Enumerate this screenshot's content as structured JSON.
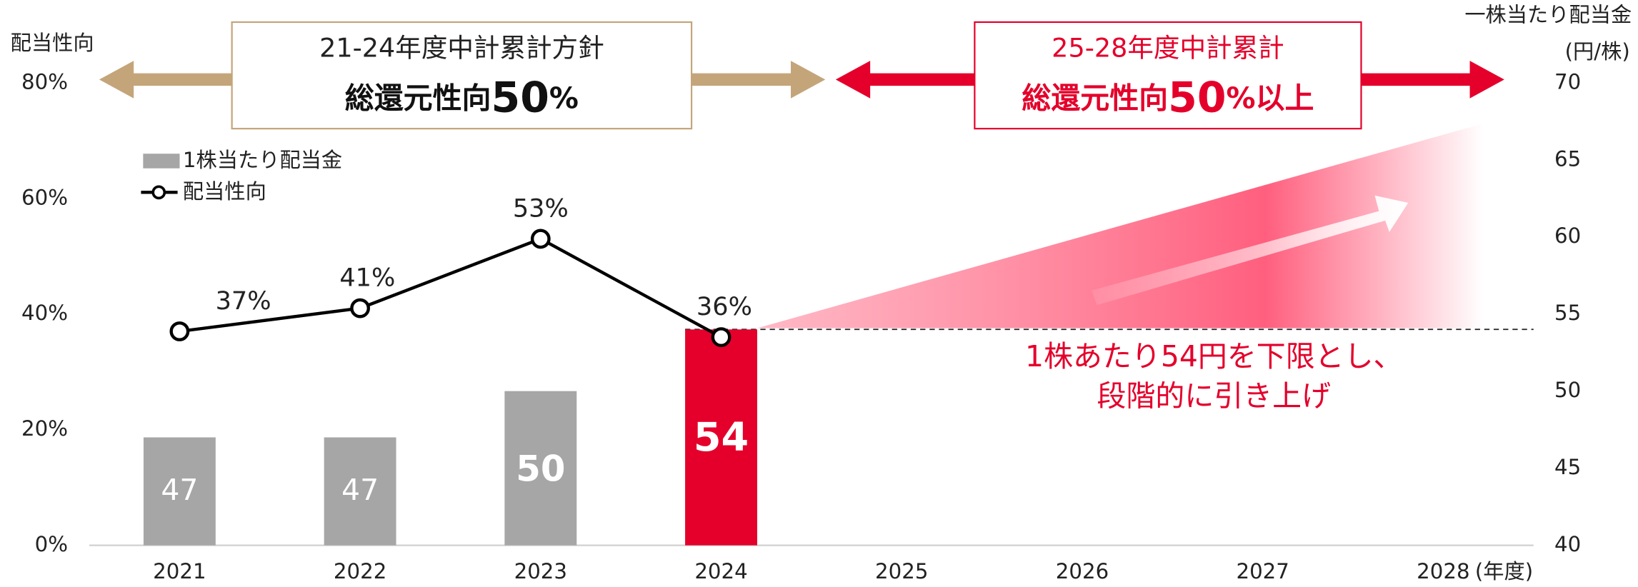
{
  "chart_data": {
    "type": "bar",
    "categories": [
      "2021",
      "2022",
      "2023",
      "2024",
      "2025",
      "2026",
      "2027",
      "2028"
    ],
    "x_label": "(年度)",
    "ylabel": "配当性向",
    "y2label": "一株当たり配当金",
    "y2unit": "(円/株)",
    "ylim": [
      0,
      80
    ],
    "yticks": [
      {
        "value": 0,
        "label": "0%"
      },
      {
        "value": 20,
        "label": "20%"
      },
      {
        "value": 40,
        "label": "40%"
      },
      {
        "value": 60,
        "label": "60%"
      },
      {
        "value": 80,
        "label": "80%"
      }
    ],
    "y2lim": [
      40,
      70
    ],
    "y2ticks": [
      40,
      45,
      50,
      55,
      60,
      65,
      70
    ],
    "series": [
      {
        "name": "1株当たり配当金",
        "type": "bar",
        "axis": "y2",
        "color": "#a6a6a6",
        "colors": [
          "#a6a6a6",
          "#a6a6a6",
          "#a6a6a6",
          "#e4002b",
          "#a6a6a6",
          "#a6a6a6",
          "#a6a6a6",
          "#a6a6a6"
        ],
        "values": [
          47,
          47,
          50,
          54,
          null,
          null,
          null,
          null
        ]
      },
      {
        "name": "配当性向",
        "type": "line",
        "color": "#000000",
        "values": [
          37,
          41,
          53,
          36,
          null,
          null,
          null,
          null
        ],
        "value_labels": [
          "37%",
          "41%",
          "53%",
          "36%",
          null,
          null,
          null,
          null
        ]
      }
    ],
    "annotations": [
      {
        "title": "21-24年度中計累計方針",
        "highlight": [
          "総還元性向",
          "50",
          "%"
        ],
        "color": "#c4a57a"
      },
      {
        "title": "25-28年度中計累計",
        "highlight": [
          "総還元性向",
          "50",
          "%以上"
        ],
        "color": "#e4002b"
      },
      {
        "text": [
          "1株あたり54円を下限とし、",
          "段階的に引き上げ"
        ],
        "color": "#e4002b"
      }
    ]
  }
}
